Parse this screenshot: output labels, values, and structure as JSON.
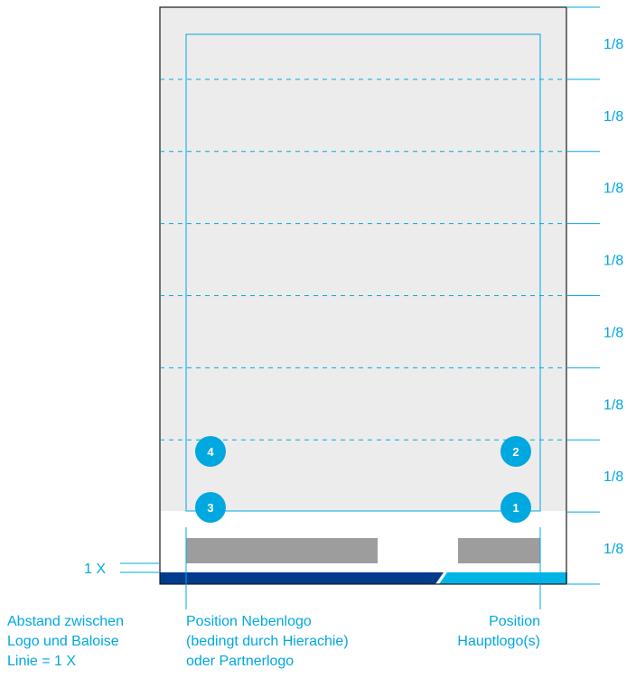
{
  "grid": {
    "row_label": "1/8",
    "row_count": 8
  },
  "markers": [
    {
      "number": "1",
      "position": "bottom-right"
    },
    {
      "number": "2",
      "position": "above-bottom-right"
    },
    {
      "number": "3",
      "position": "bottom-left"
    },
    {
      "number": "4",
      "position": "above-bottom-left"
    }
  ],
  "spacing_label": "1 X",
  "annotations": {
    "spacing": [
      "Abstand zwischen",
      "Logo und Baloise",
      "Linie = 1 X"
    ],
    "secondary_logo": [
      "Position Nebenlogo",
      "(bedingt durch Hierachie)",
      "oder Partnerlogo"
    ],
    "main_logo": [
      "Position",
      "Hauptlogo(s)"
    ]
  },
  "colors": {
    "accent": "#00a8e0",
    "brand_dark": "#003b8e",
    "brand_light": "#00b4e6",
    "image_area": "#ececec",
    "logo_placeholder": "#9d9d9d",
    "frame": "#1a1a1a"
  }
}
